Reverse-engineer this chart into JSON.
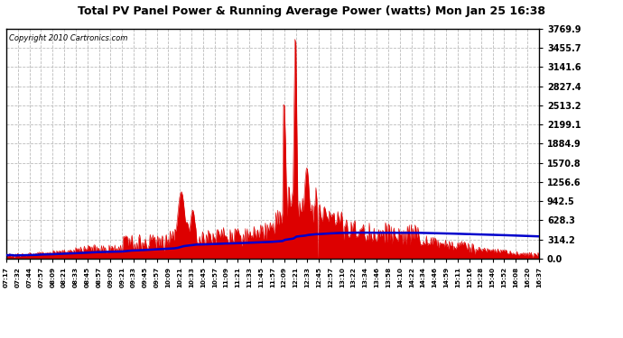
{
  "title": "Total PV Panel Power & Running Average Power (watts) Mon Jan 25 16:38",
  "copyright": "Copyright 2010 Cartronics.com",
  "background_color": "#ffffff",
  "plot_bg_color": "#ffffff",
  "grid_color": "#bbbbbb",
  "bar_color": "#dd0000",
  "line_color": "#0000cc",
  "y_ticks": [
    0.0,
    314.2,
    628.3,
    942.5,
    1256.6,
    1570.8,
    1884.9,
    2199.1,
    2513.2,
    2827.4,
    3141.6,
    3455.7,
    3769.9
  ],
  "x_labels": [
    "07:17",
    "07:32",
    "07:44",
    "07:57",
    "08:09",
    "08:21",
    "08:33",
    "08:45",
    "08:57",
    "09:09",
    "09:21",
    "09:33",
    "09:45",
    "09:57",
    "10:09",
    "10:21",
    "10:33",
    "10:45",
    "10:57",
    "11:09",
    "11:21",
    "11:33",
    "11:45",
    "11:57",
    "12:09",
    "12:21",
    "12:33",
    "12:45",
    "12:57",
    "13:10",
    "13:22",
    "13:34",
    "13:46",
    "13:58",
    "14:10",
    "14:22",
    "14:34",
    "14:46",
    "14:59",
    "15:11",
    "15:16",
    "15:28",
    "15:40",
    "15:52",
    "16:08",
    "16:20",
    "16:37"
  ],
  "ymax": 3769.9,
  "ymin": 0.0
}
